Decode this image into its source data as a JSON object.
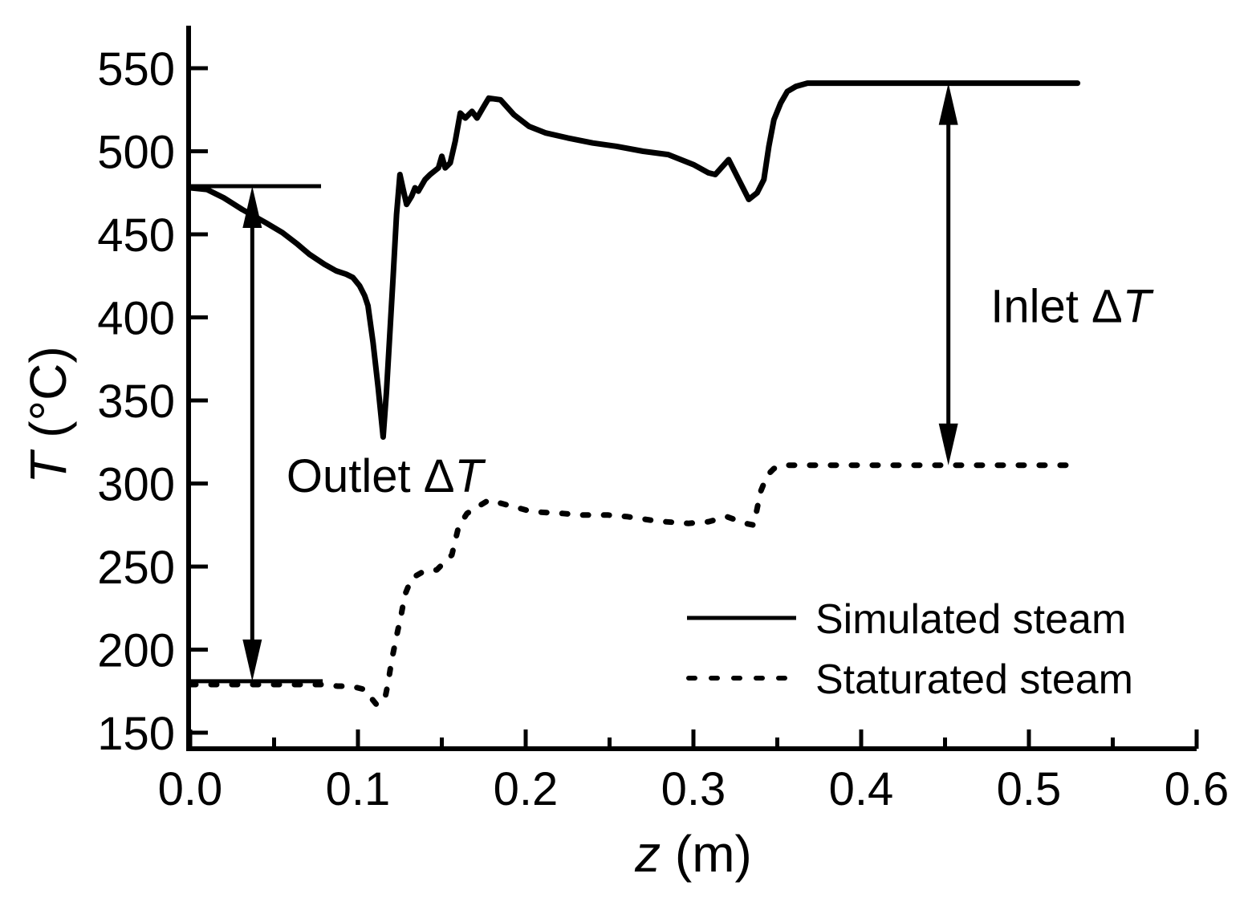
{
  "figure": {
    "background": "#ffffff",
    "ink": "#000000"
  },
  "chart_data": {
    "type": "line",
    "title": "",
    "xlabel": "z (m)",
    "ylabel": "T (°C)",
    "xlabel_parts": {
      "symbol": "z",
      "unit": " (m)"
    },
    "ylabel_parts": {
      "symbol": "T",
      "unit": " (°C)"
    },
    "xlim": [
      0.0,
      0.6
    ],
    "ylim": [
      140,
      576
    ],
    "grid": false,
    "x_major_ticks": [
      {
        "value": 0.0,
        "label": "0.0"
      },
      {
        "value": 0.1,
        "label": "0.1"
      },
      {
        "value": 0.2,
        "label": "0.2"
      },
      {
        "value": 0.3,
        "label": "0.3"
      },
      {
        "value": 0.4,
        "label": "0.4"
      },
      {
        "value": 0.5,
        "label": "0.5"
      },
      {
        "value": 0.6,
        "label": "0.6"
      }
    ],
    "x_minor_ticks": [
      0.05,
      0.15,
      0.25,
      0.35,
      0.45,
      0.55
    ],
    "y_major_ticks": [
      {
        "value": 150,
        "label": "150"
      },
      {
        "value": 200,
        "label": "200"
      },
      {
        "value": 250,
        "label": "250"
      },
      {
        "value": 300,
        "label": "300"
      },
      {
        "value": 350,
        "label": "350"
      },
      {
        "value": 400,
        "label": "400"
      },
      {
        "value": 450,
        "label": "450"
      },
      {
        "value": 500,
        "label": "500"
      },
      {
        "value": 550,
        "label": "550"
      }
    ],
    "legend": {
      "position": "lower-right",
      "entries": [
        {
          "label": "Simulated steam",
          "line_style": "solid"
        },
        {
          "label": "Staturated steam",
          "line_style": "dashed"
        }
      ]
    },
    "series": [
      {
        "name": "Simulated steam",
        "line_style": "solid",
        "points": [
          [
            0.0,
            478
          ],
          [
            0.01,
            477
          ],
          [
            0.02,
            472
          ],
          [
            0.031,
            465
          ],
          [
            0.045,
            457
          ],
          [
            0.055,
            451
          ],
          [
            0.064,
            444
          ],
          [
            0.071,
            438
          ],
          [
            0.08,
            432
          ],
          [
            0.087,
            428
          ],
          [
            0.093,
            426
          ],
          [
            0.097,
            424
          ],
          [
            0.101,
            419
          ],
          [
            0.104,
            413
          ],
          [
            0.106,
            407
          ],
          [
            0.109,
            385
          ],
          [
            0.112,
            358
          ],
          [
            0.115,
            328
          ],
          [
            0.117,
            355
          ],
          [
            0.119,
            390
          ],
          [
            0.121,
            425
          ],
          [
            0.123,
            462
          ],
          [
            0.125,
            486
          ],
          [
            0.127,
            477
          ],
          [
            0.129,
            468
          ],
          [
            0.132,
            473
          ],
          [
            0.134,
            478
          ],
          [
            0.136,
            476
          ],
          [
            0.14,
            483
          ],
          [
            0.143,
            486
          ],
          [
            0.148,
            490
          ],
          [
            0.15,
            497
          ],
          [
            0.152,
            490
          ],
          [
            0.155,
            493
          ],
          [
            0.158,
            506
          ],
          [
            0.161,
            523
          ],
          [
            0.164,
            520
          ],
          [
            0.168,
            524
          ],
          [
            0.171,
            520
          ],
          [
            0.175,
            527
          ],
          [
            0.178,
            532
          ],
          [
            0.185,
            531
          ],
          [
            0.193,
            522
          ],
          [
            0.202,
            515
          ],
          [
            0.212,
            511
          ],
          [
            0.225,
            508
          ],
          [
            0.24,
            505
          ],
          [
            0.254,
            503
          ],
          [
            0.27,
            500
          ],
          [
            0.285,
            498
          ],
          [
            0.3,
            492
          ],
          [
            0.309,
            487
          ],
          [
            0.313,
            486
          ],
          [
            0.321,
            495
          ],
          [
            0.327,
            483
          ],
          [
            0.333,
            471
          ],
          [
            0.338,
            475
          ],
          [
            0.342,
            483
          ],
          [
            0.345,
            503
          ],
          [
            0.348,
            519
          ],
          [
            0.352,
            529
          ],
          [
            0.356,
            536
          ],
          [
            0.361,
            539
          ],
          [
            0.368,
            541
          ],
          [
            0.529,
            541
          ]
        ]
      },
      {
        "name": "Staturated steam",
        "line_style": "dashed",
        "points": [
          [
            0.0,
            179
          ],
          [
            0.03,
            179
          ],
          [
            0.06,
            179
          ],
          [
            0.078,
            179
          ],
          [
            0.088,
            178
          ],
          [
            0.095,
            178
          ],
          [
            0.1,
            177
          ],
          [
            0.104,
            176
          ],
          [
            0.107,
            172
          ],
          [
            0.111,
            167
          ],
          [
            0.114,
            168
          ],
          [
            0.116,
            170
          ],
          [
            0.118,
            180
          ],
          [
            0.12,
            193
          ],
          [
            0.123,
            208
          ],
          [
            0.126,
            222
          ],
          [
            0.128,
            233
          ],
          [
            0.132,
            243
          ],
          [
            0.139,
            247
          ],
          [
            0.147,
            248
          ],
          [
            0.152,
            253
          ],
          [
            0.156,
            257
          ],
          [
            0.16,
            274
          ],
          [
            0.165,
            282
          ],
          [
            0.173,
            287
          ],
          [
            0.178,
            290
          ],
          [
            0.182,
            289
          ],
          [
            0.193,
            286
          ],
          [
            0.204,
            283
          ],
          [
            0.222,
            282
          ],
          [
            0.233,
            281
          ],
          [
            0.249,
            281
          ],
          [
            0.261,
            280
          ],
          [
            0.274,
            278
          ],
          [
            0.283,
            277
          ],
          [
            0.297,
            276
          ],
          [
            0.309,
            277
          ],
          [
            0.32,
            280
          ],
          [
            0.331,
            276
          ],
          [
            0.336,
            275
          ],
          [
            0.34,
            295
          ],
          [
            0.344,
            305
          ],
          [
            0.348,
            309
          ],
          [
            0.353,
            311
          ],
          [
            0.358,
            311
          ],
          [
            0.526,
            311
          ]
        ]
      }
    ],
    "reference_lines": [
      {
        "id": "inlet-steam-temp-line",
        "T": 479,
        "z_start": 0.0,
        "z_end": 0.078
      },
      {
        "id": "outlet-steam-temp-line",
        "T": 181,
        "z_start": 0.0,
        "z_end": 0.079
      }
    ],
    "arrows": [
      {
        "id": "outlet-delta-t-arrow",
        "z": 0.037,
        "T_from": 479,
        "T_to": 181
      },
      {
        "id": "inlet-delta-t-arrow",
        "z": 0.452,
        "T_from": 541,
        "T_to": 311
      }
    ],
    "annotations": [
      {
        "id": "outlet-delta-t-label",
        "text": "Outlet ΔT",
        "parts": {
          "pre": "Outlet Δ",
          "italic": "T"
        },
        "z": 0.116,
        "T": 295
      },
      {
        "id": "inlet-delta-t-label",
        "text": "Inlet ΔT",
        "parts": {
          "pre": "Inlet Δ",
          "italic": "T"
        },
        "z": 0.525,
        "T": 397
      }
    ]
  }
}
